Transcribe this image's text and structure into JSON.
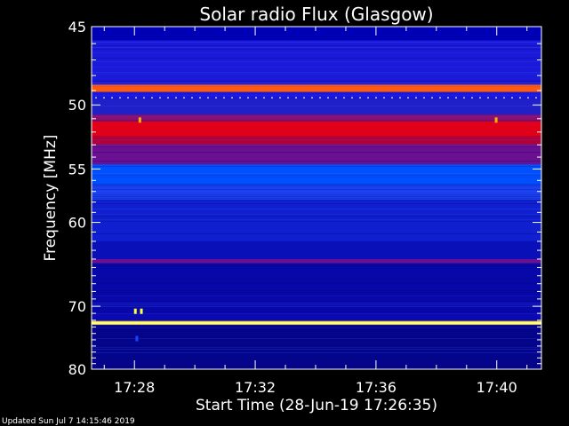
{
  "chart_data": {
    "type": "heatmap",
    "title": "Solar radio Flux (Glasgow)",
    "xlabel": "Start Time (28-Jun-19 17:26:35)",
    "ylabel": "Frequency [MHz]",
    "x_tick_labels": [
      "17:28",
      "17:32",
      "17:36",
      "17:40"
    ],
    "x_tick_minutes": [
      1.42,
      5.42,
      9.42,
      13.42
    ],
    "xlim_minutes": [
      0,
      14.9
    ],
    "y_ticks": [
      45,
      50,
      55,
      60,
      70,
      80
    ],
    "ylim": [
      45,
      80
    ],
    "y_scale": "reciprocal",
    "colormap": {
      "low": "#0000a0",
      "mid": "#0050ff",
      "high_mid": "#b00030",
      "high": "#ffe000",
      "top": "#ffffff"
    },
    "bands": [
      {
        "from": 45.0,
        "to": 45.8,
        "color": "#0000b8"
      },
      {
        "from": 45.8,
        "to": 48.6,
        "color": "#1a1ad8"
      },
      {
        "from": 48.6,
        "to": 49.1,
        "color": "#ff5a10"
      },
      {
        "from": 49.1,
        "to": 49.6,
        "color": "#1a1ae0"
      },
      {
        "from": 49.6,
        "to": 50.7,
        "color": "#2020c8"
      },
      {
        "from": 50.7,
        "to": 51.2,
        "color": "#8a1070"
      },
      {
        "from": 51.2,
        "to": 52.4,
        "color": "#e0001a"
      },
      {
        "from": 52.4,
        "to": 53.0,
        "color": "#b0003c"
      },
      {
        "from": 53.0,
        "to": 54.6,
        "color": "#6a1090"
      },
      {
        "from": 54.6,
        "to": 56.4,
        "color": "#0050ff"
      },
      {
        "from": 56.4,
        "to": 57.8,
        "color": "#1a40f0"
      },
      {
        "from": 57.8,
        "to": 62.0,
        "color": "#1020d0"
      },
      {
        "from": 62.0,
        "to": 64.0,
        "color": "#0a10b8"
      },
      {
        "from": 64.0,
        "to": 64.5,
        "color": "#6a1090"
      },
      {
        "from": 64.5,
        "to": 71.0,
        "color": "#0808a8"
      },
      {
        "from": 71.0,
        "to": 72.1,
        "color": "#0a0ab0"
      },
      {
        "from": 72.1,
        "to": 72.7,
        "color": "#ffe000"
      },
      {
        "from": 72.7,
        "to": 80.0,
        "color": "#05058c"
      }
    ],
    "bursts": [
      {
        "minute": 1.6,
        "freq": 51.1,
        "color": "#ffb000"
      },
      {
        "minute": 13.4,
        "freq": 51.1,
        "color": "#ffb000"
      },
      {
        "minute": 1.45,
        "freq": 70.7,
        "color": "#ffff40"
      },
      {
        "minute": 1.65,
        "freq": 70.7,
        "color": "#ffff40"
      },
      {
        "minute": 1.5,
        "freq": 74.8,
        "color": "#2040ff"
      }
    ]
  },
  "footer": {
    "updated": "Updated Sun Jul  7 14:15:46 2019"
  }
}
